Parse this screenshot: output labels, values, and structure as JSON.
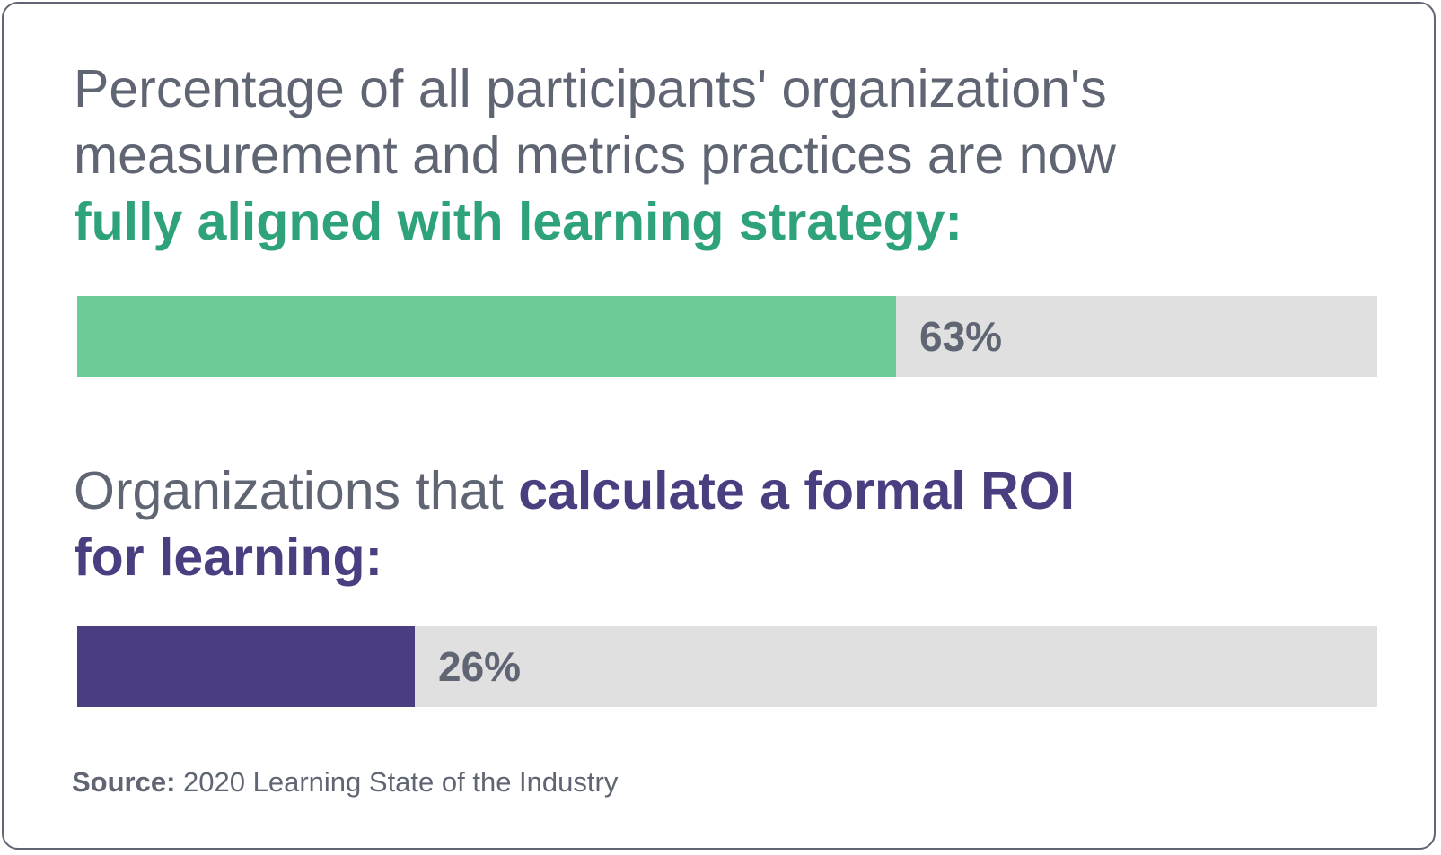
{
  "colors": {
    "text": "#5f6572",
    "green_accent": "#2ea37a",
    "green_bar": "#6ccb99",
    "purple_accent": "#4a3d80",
    "track": "#e0e0e0",
    "border": "#5f6572"
  },
  "chart_data": [
    {
      "type": "bar",
      "title_lines": [
        "Percentage of all participants' organization's",
        "measurement and metrics practices are now"
      ],
      "title_highlight": "fully aligned with learning strategy:",
      "value": 63,
      "value_label": "63%",
      "max": 100,
      "bar_color": "#6ccb99"
    },
    {
      "type": "bar",
      "title_prefix": "Organizations that ",
      "title_highlight_1": "calculate a formal ROI",
      "title_highlight_2": "for learning:",
      "value": 26,
      "value_label": "26%",
      "max": 100,
      "bar_color": "#4a3d80"
    }
  ],
  "source": {
    "label": "Source:",
    "text": "2020 Learning State of the Industry"
  }
}
